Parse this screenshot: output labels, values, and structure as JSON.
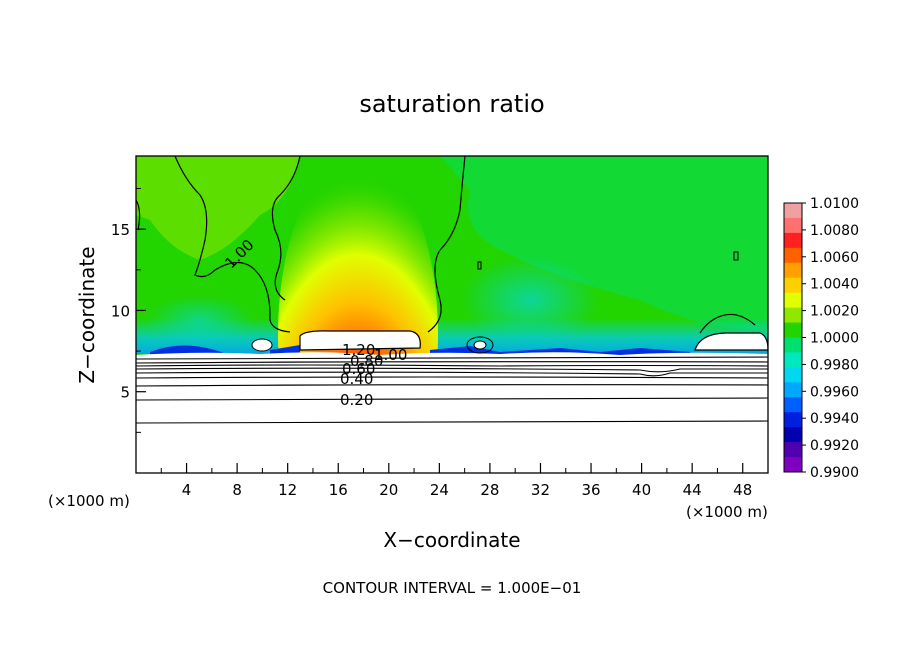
{
  "chart_data": {
    "type": "heatmap",
    "title": "saturation ratio",
    "xlabel": "X−coordinate",
    "ylabel": "Z−coordinate",
    "x_unit": "(×1000 m)",
    "x_unit_right": "(×1000 m)",
    "footer": "CONTOUR INTERVAL = 1.000E−01",
    "xlim": [
      0,
      50
    ],
    "ylim": [
      0,
      19.5
    ],
    "x_ticks": [
      4,
      8,
      12,
      16,
      20,
      24,
      28,
      32,
      36,
      40,
      44,
      48
    ],
    "y_ticks": [
      5,
      10,
      15
    ],
    "colorbar": {
      "labels": [
        "1.0100",
        "1.0080",
        "1.0060",
        "1.0040",
        "1.0020",
        "1.0000",
        "0.9980",
        "0.9960",
        "0.9940",
        "0.9920",
        "0.9900"
      ],
      "colors": [
        "#f0a0a0",
        "#ff7070",
        "#ff2020",
        "#ff6000",
        "#ffa000",
        "#ffd000",
        "#e0ff00",
        "#90e800",
        "#22d400",
        "#00e070",
        "#00e8c0",
        "#00d8f0",
        "#00a8ff",
        "#0060ff",
        "#0020e0",
        "#0000b0",
        "#5000b0",
        "#8000c0"
      ]
    },
    "contour_labels": [
      "1.00",
      "1.20",
      "1.00",
      "0.80",
      "0.60",
      "0.40",
      "0.20"
    ]
  }
}
